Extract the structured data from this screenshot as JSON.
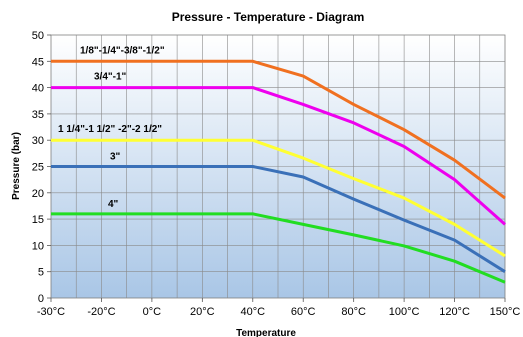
{
  "chart_data": {
    "type": "line",
    "title": "Pressure - Temperature - Diagram",
    "xlabel": "Temperature",
    "ylabel": "Pressure  (bar)",
    "x": [
      "-30°C",
      "-20°C",
      "0°C",
      "20°C",
      "40°C",
      "60°C",
      "80°C",
      "100°C",
      "120°C",
      "150°C"
    ],
    "ylim": [
      0,
      50
    ],
    "yticks": [
      0,
      5,
      10,
      15,
      20,
      25,
      30,
      35,
      40,
      45,
      50
    ],
    "grid": true,
    "series": [
      {
        "name": "1/8\"-1/4\"-3/8\"-1/2\"",
        "color": "#f07020",
        "values": [
          45,
          45,
          45,
          45,
          45,
          42.2,
          36.8,
          32,
          26.2,
          19
        ]
      },
      {
        "name": "3/4\"-1\"",
        "color": "#ee00ee",
        "values": [
          40,
          40,
          40,
          40,
          40,
          36.8,
          33.3,
          28.8,
          22.5,
          14
        ]
      },
      {
        "name": "1 1/4\"-1 1/2\" -2\"-2 1/2\"",
        "color": "#ffff33",
        "values": [
          30,
          30,
          30,
          30,
          30,
          26.6,
          22.7,
          19,
          14,
          8
        ]
      },
      {
        "name": "3\"",
        "color": "#3a70b8",
        "values": [
          25,
          25,
          25,
          25,
          25,
          23,
          18.8,
          14.8,
          11,
          5
        ]
      },
      {
        "name": "4\"",
        "color": "#22dd22",
        "values": [
          16,
          16,
          16,
          16,
          16,
          14,
          12,
          9.9,
          7,
          3
        ]
      }
    ]
  }
}
